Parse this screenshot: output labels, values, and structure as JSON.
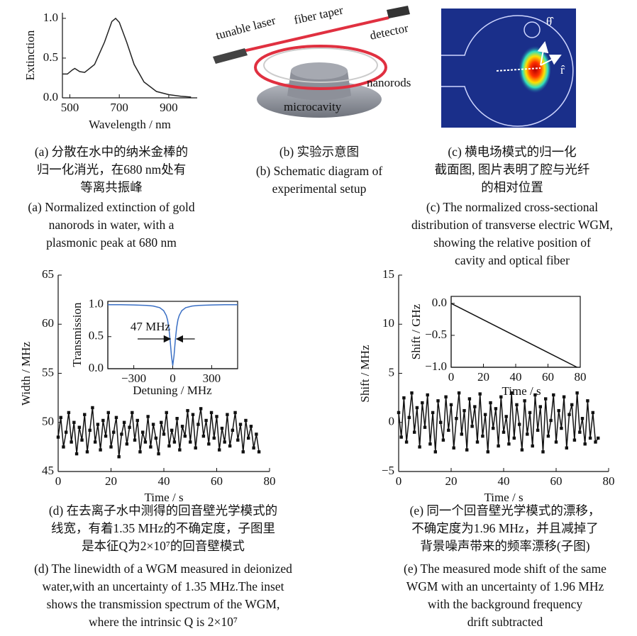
{
  "chart_data": [
    {
      "type": "line",
      "x_label": "Wavelength / nm",
      "y_label": "Extinction",
      "color": "#222222",
      "x": [
        470,
        490,
        510,
        520,
        540,
        560,
        600,
        640,
        670,
        685,
        700,
        730,
        760,
        800,
        850,
        900,
        950,
        990
      ],
      "values": [
        0.3,
        0.3,
        0.35,
        0.37,
        0.33,
        0.32,
        0.42,
        0.7,
        0.96,
        1.0,
        0.95,
        0.7,
        0.42,
        0.2,
        0.08,
        0.04,
        0.02,
        0.01
      ],
      "xlim": [
        470,
        1015
      ],
      "xticks": [
        500,
        700,
        900
      ],
      "ylim": [
        0,
        1.07
      ],
      "yticks": [
        {
          "value": 0,
          "label": "0.0"
        },
        {
          "value": 0.5,
          "label": "0.5"
        },
        {
          "value": 1,
          "label": "1.0"
        }
      ]
    },
    {
      "type": "line",
      "markers": true,
      "x_label": "Time / s",
      "y_label": "Width / MHz",
      "color": "#111111",
      "x": [
        0,
        1,
        2,
        3,
        4,
        5,
        6,
        7,
        8,
        9,
        10,
        11,
        12,
        13,
        14,
        15,
        16,
        17,
        18,
        19,
        20,
        21,
        22,
        23,
        24,
        25,
        26,
        27,
        28,
        29,
        30,
        31,
        32,
        33,
        34,
        35,
        36,
        37,
        38,
        39,
        40,
        41,
        42,
        43,
        44,
        45,
        46,
        47,
        48,
        49,
        50,
        51,
        52,
        53,
        54,
        55,
        56,
        57,
        58,
        59,
        60,
        61,
        62,
        63,
        64,
        65,
        66,
        67,
        68,
        69,
        70,
        71,
        72,
        73,
        74,
        75,
        76
      ],
      "values": [
        48.5,
        50.5,
        47.5,
        49.0,
        51.0,
        48.0,
        50.0,
        46.8,
        49.5,
        48.2,
        50.8,
        47.0,
        49.2,
        51.5,
        48.0,
        49.8,
        47.2,
        50.2,
        48.6,
        51.0,
        47.5,
        49.0,
        50.5,
        46.5,
        48.8,
        50.0,
        47.8,
        49.5,
        51.0,
        48.2,
        50.2,
        47.0,
        49.0,
        48.0,
        50.6,
        47.5,
        49.8,
        48.4,
        46.8,
        50.0,
        48.8,
        51.0,
        47.6,
        49.2,
        48.0,
        50.4,
        47.2,
        49.6,
        48.6,
        51.2,
        48.0,
        50.8,
        47.4,
        49.8,
        51.4,
        48.6,
        50.2,
        47.8,
        51.0,
        48.4,
        50.6,
        47.2,
        49.4,
        48.0,
        50.8,
        47.6,
        49.2,
        51.0,
        48.2,
        49.8,
        47.0,
        50.2,
        48.4,
        49.6,
        47.4,
        48.8,
        47.0
      ],
      "xlim": [
        0,
        80
      ],
      "xticks": [
        0,
        20,
        40,
        60,
        80
      ],
      "ylim": [
        45,
        65
      ],
      "yticks": [
        45,
        50,
        55,
        60,
        65
      ]
    },
    {
      "type": "line",
      "x_label": "Detuning / MHz",
      "y_label": "Transmission",
      "color": "#3a6fc4",
      "annotation": "47 MHz",
      "x": [
        -500,
        -400,
        -300,
        -200,
        -150,
        -100,
        -70,
        -50,
        -40,
        -30,
        -20,
        -10,
        0,
        10,
        20,
        30,
        40,
        50,
        70,
        100,
        150,
        200,
        300,
        400,
        500
      ],
      "values": [
        0.998,
        0.997,
        0.994,
        0.987,
        0.977,
        0.952,
        0.905,
        0.83,
        0.76,
        0.64,
        0.45,
        0.2,
        0.05,
        0.2,
        0.45,
        0.64,
        0.76,
        0.83,
        0.905,
        0.952,
        0.977,
        0.987,
        0.994,
        0.997,
        0.998
      ],
      "xlim": [
        -500,
        500
      ],
      "xticks": [
        {
          "value": -300,
          "label": "−300"
        },
        0,
        300
      ],
      "ylim": [
        0,
        1.05
      ],
      "yticks": [
        {
          "value": 0,
          "label": "0.0"
        },
        {
          "value": 0.5,
          "label": "0.5"
        },
        {
          "value": 1,
          "label": "1.0"
        }
      ]
    },
    {
      "type": "line",
      "markers": true,
      "x_label": "Time / s",
      "y_label": "Shift / MHz",
      "color": "#111111",
      "x": [
        0,
        1,
        2,
        3,
        4,
        5,
        6,
        7,
        8,
        9,
        10,
        11,
        12,
        13,
        14,
        15,
        16,
        17,
        18,
        19,
        20,
        21,
        22,
        23,
        24,
        25,
        26,
        27,
        28,
        29,
        30,
        31,
        32,
        33,
        34,
        35,
        36,
        37,
        38,
        39,
        40,
        41,
        42,
        43,
        44,
        45,
        46,
        47,
        48,
        49,
        50,
        51,
        52,
        53,
        54,
        55,
        56,
        57,
        58,
        59,
        60,
        61,
        62,
        63,
        64,
        65,
        66,
        67,
        68,
        69,
        70,
        71,
        72,
        73,
        74,
        75,
        76
      ],
      "values": [
        1.0,
        -1.5,
        2.5,
        -2.0,
        0.5,
        3.0,
        -1.0,
        1.5,
        -2.5,
        2.0,
        -0.5,
        2.8,
        -2.2,
        1.0,
        -3.0,
        2.2,
        0.0,
        -1.8,
        2.6,
        -0.8,
        1.8,
        -2.6,
        0.4,
        3.0,
        -1.2,
        1.2,
        -2.8,
        2.4,
        -0.4,
        1.6,
        -2.0,
        2.9,
        -1.4,
        0.8,
        -3.0,
        2.0,
        -0.6,
        1.4,
        -2.4,
        2.6,
        -1.0,
        0.6,
        -2.2,
        3.0,
        -1.6,
        1.8,
        -0.2,
        -2.8,
        2.2,
        -1.2,
        1.0,
        -2.4,
        2.8,
        -0.8,
        1.6,
        -3.0,
        2.4,
        -1.4,
        0.2,
        2.8,
        -2.0,
        1.2,
        -0.6,
        2.6,
        -2.6,
        0.8,
        1.8,
        -1.8,
        3.0,
        -1.0,
        0.4,
        -2.2,
        2.2,
        -1.6,
        1.0,
        -2.0,
        -1.6
      ],
      "xlim": [
        0,
        80
      ],
      "xticks": [
        0,
        20,
        40,
        60,
        80
      ],
      "ylim": [
        -5,
        15
      ],
      "yticks": [
        {
          "value": -5,
          "label": "−5"
        },
        0,
        5,
        10,
        15
      ]
    },
    {
      "type": "line",
      "x_label": "Time / s",
      "y_label": "Shift / GHz",
      "color": "#111111",
      "x": [
        0,
        78
      ],
      "values": [
        0,
        -1.0
      ],
      "xlim": [
        0,
        80
      ],
      "xticks": [
        0,
        20,
        40,
        60,
        80
      ],
      "ylim": [
        -1.0,
        0.11
      ],
      "yticks": [
        {
          "value": -1,
          "label": "−1.0"
        },
        {
          "value": -0.5,
          "label": "−0.5"
        },
        {
          "value": 0,
          "label": "0.0"
        }
      ]
    }
  ],
  "diagram": {
    "labels": [
      "tunable laser",
      "fiber taper",
      "detector",
      "nanorods",
      "microcavity"
    ]
  },
  "field_map": {
    "labels": [
      "θ̂",
      "r̂"
    ]
  },
  "captions": {
    "a": {
      "zh": [
        "(a) 分散在水中的纳米金棒的",
        "归一化消光，在680 nm处有",
        "等离共振峰"
      ],
      "en": [
        "(a) Normalized extinction of gold",
        "nanorods in water, with a",
        "plasmonic peak at 680 nm"
      ]
    },
    "b": {
      "zh": [
        "(b) 实验示意图"
      ],
      "en": [
        "(b) Schematic diagram of",
        "experimental setup"
      ]
    },
    "c": {
      "zh": [
        "(c) 横电场模式的归一化",
        "截面图, 图片表明了腔与光纤",
        "的相对位置"
      ],
      "en": [
        "(c) The normalized cross-sectional",
        "distribution of transverse electric WGM,",
        "showing the relative position of",
        "cavity and optical fiber"
      ]
    },
    "d": {
      "zh": [
        "(d) 在去离子水中测得的回音壁光学模式的",
        "线宽，有着1.35 MHz的不确定度，子图里",
        "是本征Q为2×10⁷的回音壁模式"
      ],
      "en": [
        "(d) The linewidth of a WGM measured in deionized",
        "water,with an uncertainty of 1.35 MHz.The inset",
        "shows the transmission spectrum of the WGM,",
        "where the intrinsic Q is 2×10⁷"
      ]
    },
    "e": {
      "zh": [
        "(e) 同一个回音壁光学模式的漂移，",
        "不确定度为1.96 MHz，并且减掉了",
        "背景噪声带来的频率漂移(子图)"
      ],
      "en": [
        "(e) The measured mode shift of the same",
        "WGM with an uncertainty of 1.96 MHz",
        "with the background frequency",
        "drift subtracted"
      ]
    }
  }
}
